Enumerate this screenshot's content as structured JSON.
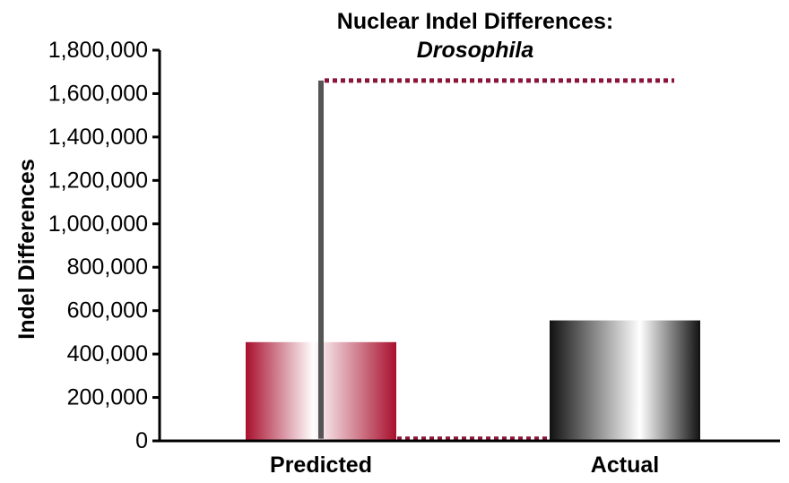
{
  "chart_data": {
    "type": "bar",
    "title": "Nuclear Indel Differences:",
    "subtitle": "Drosophila",
    "xlabel": "",
    "ylabel": "Indel Differences",
    "categories": [
      "Predicted",
      "Actual"
    ],
    "values": [
      455000,
      555000
    ],
    "range_line": {
      "category": "Predicted",
      "low": 10000,
      "high": 1660000
    },
    "reference_lines": [
      1660000,
      10000
    ],
    "ylim": [
      0,
      1800000
    ],
    "yticks": [
      0,
      200000,
      400000,
      600000,
      800000,
      1000000,
      1200000,
      1400000,
      1600000,
      1800000
    ],
    "ytick_labels": [
      "0",
      "200,000",
      "400,000",
      "600,000",
      "800,000",
      "1,000,000",
      "1,200,000",
      "1,400,000",
      "1,600,000",
      "1,800,000"
    ],
    "grid": false,
    "legend": "none",
    "colors": {
      "predicted_bar": "#a8102e",
      "actual_bar": "#111111",
      "range_line": "#555555",
      "reference_line": "#8b1538",
      "axis": "#000000"
    }
  }
}
